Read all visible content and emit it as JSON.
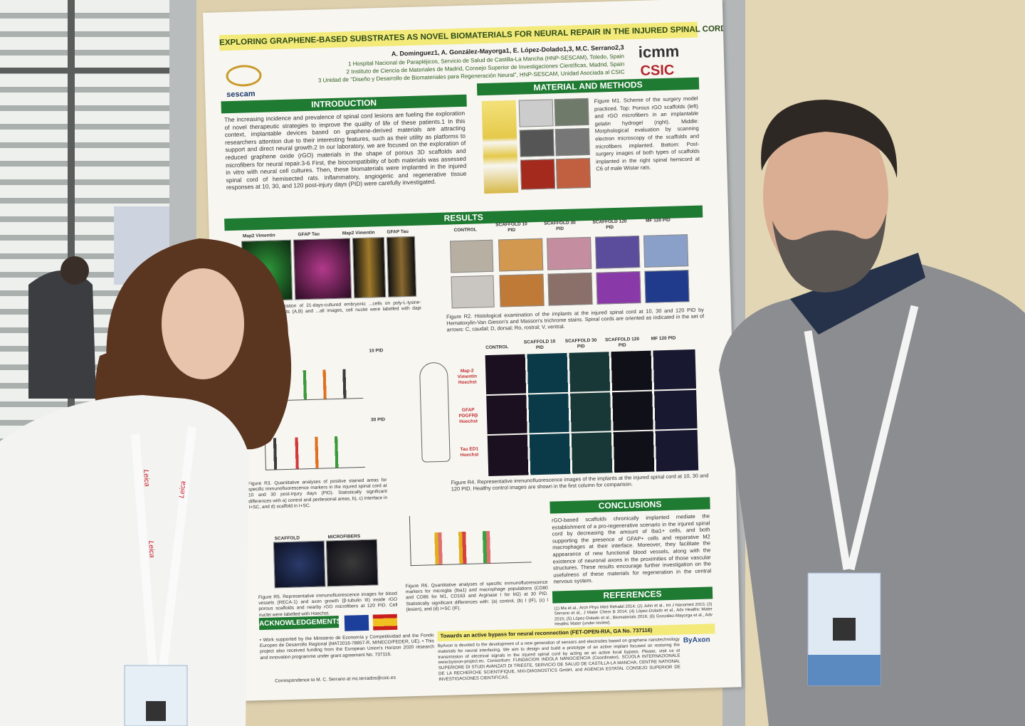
{
  "poster": {
    "title": "EXPLORING GRAPHENE-BASED SUBSTRATES AS NOVEL BIOMATERIALS FOR NEURAL REPAIR IN THE INJURED SPINAL CORD",
    "authors": "A. Dominguez1, A. González-Mayorga1, E. López-Dolado1,3, M.C. Serrano2,3",
    "affiliations": [
      "1 Hospital Nacional de Parapléjicos, Servicio de Salud de Castilla-La Mancha (HNP-SESCAM), Toledo, Spain",
      "2 Instituto de Ciencia de Materiales de Madrid, Consejo Superior de Investigaciones Científicas, Madrid, Spain",
      "3 Unidad de \"Diseño y Desarrollo de Biomateriales para Regeneración Neural\", HNP-SESCAM, Unidad Asociada al CSIC"
    ],
    "logos": [
      "icmm",
      "CSIC",
      "sescam"
    ],
    "introduction": {
      "heading": "INTRODUCTION",
      "text": "The increasing incidence and prevalence of spinal cord lesions are fueling the exploration of novel therapeutic strategies to improve the quality of life of these patients.1 In this context, implantable devices based on graphene-derived materials are attracting researchers attention due to their interesting features, such as their utility as platforms to support and direct neural growth.2 In our laboratory, we are focused on the exploration of reduced graphene oxide (rGO) materials in the shape of porous 3D scaffolds and microfibers for neural repair.3-6 First, the biocompatibility of both materials was assessed in vitro with neural cell cultures. Then, these biomaterials were implanted in the injured spinal cord of hemisected rats. Inflammatory, angiogenic and regenerative tissue responses at 10, 30, and 120 post-injury days (PID) were carefully investigated."
    },
    "methods": {
      "heading": "MATERIAL AND METHODS",
      "caption": "Figure M1. Scheme of the surgery model practiced. Top: Porous rGO scaffolds (left) and rGO microfibers in an implantable gelatin hydrogel (right). Middle: Morphological evaluation by scanning electron microscopy of the scaffolds and microfibers implanted. Bottom: Post-surgery images of both types of scaffolds implanted in the right spinal hemicord at C6 of male Wistar rats."
    },
    "results": {
      "heading": "RESULTS",
      "r1_labels": [
        "Map2 Vimentin",
        "GFAP Tau",
        "Map2 Vimentin",
        "GFAP Tau"
      ],
      "r1_caption": "...logical characterization of 21-days-cultured embryonic ...cells on poly-L-lysine-coated rGO scaffolds (A,B) and ...all images, cell nuclei were labelled with dapi (blue).",
      "columns": [
        "CONTROL",
        "SCAFFOLD 10 PID",
        "SCAFFOLD 30 PID",
        "SCAFFOLD 120 PID",
        "MF 120 PID"
      ],
      "r2_caption": "Figure R2. Histological examination of the implants at the injured spinal cord at 10, 30 and 120 PID by Hematoxylin-Van Gieson's and Masson's trichrome stains. Spinal cords are oriented as indicated in the set of arrows: C, caudal; D, dorsal; Ro, rostral; V, ventral.",
      "r3_panels": [
        "10 PID",
        "30 PID"
      ],
      "r3_caption": "Figure R3. Quantitative analyses of positive stained areas for specific immunofluorescence markers in the injured spinal cord at 10 and 30 post-injury days (PID). Statistically significant differences with a) control and perilesional areas, b), c) interface in I+SC, and d) scaffold in I+SC.",
      "r4_rows": [
        "Map-2 Vimentin Hoechst",
        "GFAP PDGFRβ Hoechst",
        "Tau ED1 Hoechst"
      ],
      "r4_caption": "Figure R4. Representative immunofluorescence images of the implants at the injured spinal cord at 10, 30 and 120 PID. Healthy control images are shown in the first column for comparison.",
      "r5_labels": [
        "SCAFFOLD",
        "MICROFIBERS"
      ],
      "r5_caption": "Figure R5. Representative immunofluorescence images for blood vessels (RECA-1) and axon growth (β-tubulin III) inside rGO porous scaffolds and nearby rGO microfibers at 120 PID. Cell nuclei were labelled with Hoechst.",
      "r6_caption": "Figure R6. Quantitative analyses of specific immunofluorescence markers for microglia (Iba1) and macrophage populations (CD80 and CD86 for M1, CD163 and Arginase I for M2) at 30 PID. Statistically significant differences with: (a) control, (b) I (IF), (c) I (lesion), and (d) I+SC (IF)."
    },
    "conclusions": {
      "heading": "CONCLUSIONS",
      "text": "rGO-based scaffolds chronically implanted mediate the establishment of a pro-regenerative scenario in the injured spinal cord by decreasing the amount of Iba1+ cells, and both supporting the presence of GFAP+ cells and reparative M2 macrophages at their interface. Moreover, they facilitate the appearance of new functional blood vessels, along with the existence of neuronal axons in the proximities of those vascular structures. These results encourage further investigation on the usefulness of these materials for regeneration in the central nervous system."
    },
    "references": {
      "heading": "REFERENCES",
      "text": "(1) Ma et al., Arch Phys Med Rehabil 2014; (2) John et al., Int J Nanomed 2015; (3) Serrano et al., J Mater Chem B 2014; (4) López-Dolado et al., Adv Healthc Mater 2015; (5) López-Dolado et al., Biomaterials 2016; (6) González-Mayorga et al., Adv Healthc Mater (under review)."
    },
    "acknowledgements": {
      "heading": "ACKNOWLEDGEMENTS",
      "text": "• Work supported by the Ministerio de Economía y Competitividad and the Fondo Europeo de Desarrollo Regional (MAT2016-78857-R, MINECO/FEDER, UE). • This project also received funding from the European Union's Horizon 2020 research and innovation programme under grant agreement No. 737116.",
      "correspondence": "Correspondence to M. C. Serrano at mc.terrados@csic.es"
    },
    "byaxon": {
      "heading": "Towards an active bypass for neural reconnection (FET-OPEN-RIA, GA No. 737116)",
      "logo": "ByAxon",
      "text": "ByAxon is devoted to the development of a new generation of sensors and electrodes based on graphene nanotechnology materials for neural interfacing. We aim to design and build a prototype of an active implant focused on restoring the transmission of electrical signals in the injured spinal cord by acting as an active local bypass. Please, visit us at www.byaxon-project.eu. Consortium: FUNDACION INDOLA NANOCIENCIA (Coordinator), SCUOLA INTERNAZIONALE SUPERIORE DI STUDI AVANZATI DI TRIESTE, SERVICIO DE SALUD DE CASTILLA-LA MANCHA, CENTRE NATIONAL DE LA RECHERCHE SCIENTIFIQUE, MXI-DIAGNOSTICS GmbH, and AGENCIA ESTATAL CONSEJO SUPERIOR DE INVESTIGACIONES CIENTIFICAS."
    }
  },
  "lanyard": {
    "text": "Leica"
  }
}
